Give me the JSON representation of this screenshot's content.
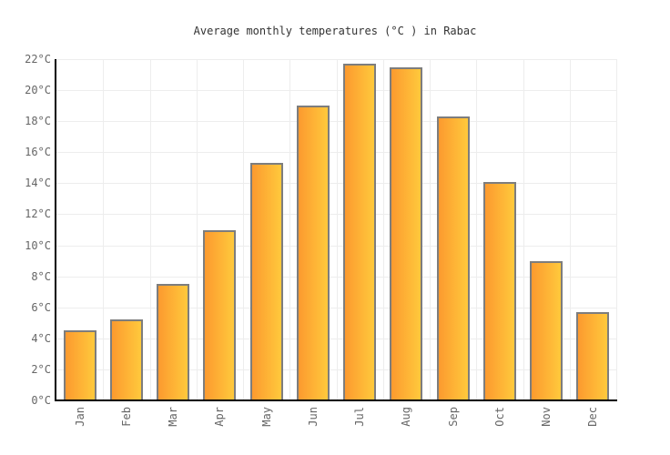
{
  "chart_data": {
    "type": "bar",
    "title": "Average monthly temperatures (°C ) in Rabac",
    "categories": [
      "Jan",
      "Feb",
      "Mar",
      "Apr",
      "May",
      "Jun",
      "Jul",
      "Aug",
      "Sep",
      "Oct",
      "Nov",
      "Dec"
    ],
    "values": [
      4.5,
      5.2,
      7.5,
      11.0,
      15.3,
      19.0,
      21.7,
      21.5,
      18.3,
      14.1,
      9.0,
      5.7
    ],
    "xlabel": "",
    "ylabel": "",
    "ylim": [
      0,
      22
    ],
    "ytick_step": 2,
    "ytick_labels": [
      "0°C",
      "2°C",
      "4°C",
      "6°C",
      "8°C",
      "10°C",
      "12°C",
      "14°C",
      "16°C",
      "18°C",
      "20°C",
      "22°C"
    ],
    "grid": true,
    "legend": false
  },
  "colors": {
    "background": "#ffffff",
    "title": "#333333",
    "tick_label": "#666666",
    "grid": "#ededed",
    "axis": "#000000",
    "bar_border": "#7d7d7d",
    "bar_gradient_left": "#fc9a2f",
    "bar_gradient_right": "#ffc93c"
  }
}
